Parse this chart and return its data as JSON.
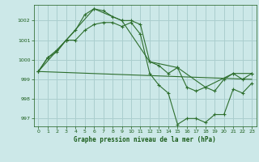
{
  "title": "Graphe pression niveau de la mer (hPa)",
  "background_color": "#cce8e8",
  "grid_color": "#aacece",
  "line_color": "#2d6e2d",
  "text_color": "#1a5c1a",
  "xlim": [
    -0.5,
    23.5
  ],
  "ylim": [
    996.6,
    1002.8
  ],
  "yticks": [
    997,
    998,
    999,
    1000,
    1001,
    1002
  ],
  "xticks": [
    0,
    1,
    2,
    3,
    4,
    5,
    6,
    7,
    8,
    9,
    10,
    11,
    12,
    13,
    14,
    15,
    16,
    17,
    18,
    19,
    20,
    21,
    22,
    23
  ],
  "series": [
    {
      "x": [
        0,
        1,
        2,
        3,
        4,
        5,
        6,
        7,
        8,
        9,
        10,
        11,
        12,
        13,
        14,
        15,
        16,
        17,
        18,
        19,
        20,
        21,
        22,
        23
      ],
      "y": [
        999.4,
        1000.1,
        1000.5,
        1001.0,
        1001.5,
        1002.3,
        1002.6,
        1002.5,
        1002.2,
        1002.0,
        1002.0,
        1001.8,
        999.9,
        999.7,
        999.3,
        999.6,
        998.6,
        998.4,
        998.6,
        998.4,
        999.0,
        999.3,
        999.0,
        999.3
      ],
      "marker": "+"
    },
    {
      "x": [
        0,
        1,
        2,
        3,
        4,
        5,
        6,
        7,
        8,
        9,
        10,
        11,
        12,
        13,
        14,
        15,
        16,
        17,
        18,
        19,
        20,
        21,
        22,
        23
      ],
      "y": [
        999.4,
        1000.1,
        1000.4,
        1001.0,
        1001.0,
        1001.5,
        1001.8,
        1001.9,
        1001.9,
        1001.7,
        1001.9,
        1001.3,
        999.3,
        998.7,
        998.3,
        996.7,
        997.0,
        997.0,
        996.8,
        997.2,
        997.2,
        998.5,
        998.3,
        998.8
      ],
      "marker": "+"
    },
    {
      "x": [
        0,
        3,
        6,
        9,
        12,
        15,
        18,
        21,
        23
      ],
      "y": [
        999.4,
        1001.0,
        1002.6,
        1002.0,
        999.9,
        999.6,
        998.6,
        999.3,
        999.3
      ],
      "marker": "+"
    },
    {
      "x": [
        0,
        23
      ],
      "y": [
        999.4,
        999.0
      ],
      "marker": null
    }
  ]
}
